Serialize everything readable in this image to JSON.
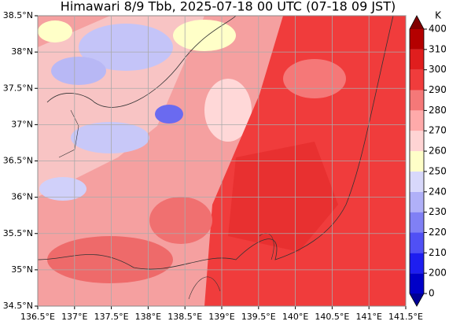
{
  "title": "Himawari 8/9 Tbb, 2025-07-18 00 UTC (07-18 09 JST)",
  "map": {
    "xlim": [
      136.5,
      141.5
    ],
    "ylim": [
      34.5,
      38.5
    ],
    "grid": true,
    "xticks": [
      {
        "value": 136.5,
        "label": "136.5°E"
      },
      {
        "value": 137,
        "label": "137°E"
      },
      {
        "value": 137.5,
        "label": "137.5°E"
      },
      {
        "value": 138,
        "label": "138°E"
      },
      {
        "value": 138.5,
        "label": "138.5°E"
      },
      {
        "value": 139,
        "label": "139°E"
      },
      {
        "value": 139.5,
        "label": "139.5°E"
      },
      {
        "value": 140,
        "label": "140°E"
      },
      {
        "value": 140.5,
        "label": "140.5°E"
      },
      {
        "value": 141,
        "label": "141°E"
      },
      {
        "value": 141.5,
        "label": "141.5°E"
      }
    ],
    "yticks": [
      {
        "value": 34.5,
        "label": "34.5°N"
      },
      {
        "value": 35,
        "label": "35°N"
      },
      {
        "value": 35.5,
        "label": "35.5°N"
      },
      {
        "value": 36,
        "label": "36°N"
      },
      {
        "value": 36.5,
        "label": "36.5°N"
      },
      {
        "value": 37,
        "label": "37°N"
      },
      {
        "value": 37.5,
        "label": "37.5°N"
      },
      {
        "value": 38,
        "label": "38°N"
      },
      {
        "value": 38.5,
        "label": "38.5°N"
      }
    ]
  },
  "colorbar": {
    "unit": "K",
    "levels": [
      0,
      200,
      210,
      220,
      230,
      240,
      250,
      260,
      270,
      280,
      290,
      300,
      310,
      400
    ],
    "colors": [
      "#0000c8",
      "#1e1ef0",
      "#5050f5",
      "#8080f5",
      "#b0b0f8",
      "#d8d8fb",
      "#ffffc8",
      "#ffd4d4",
      "#ffaaaa",
      "#f57878",
      "#f03c3c",
      "#e01e1e",
      "#b40000"
    ],
    "under_color": "#000096",
    "over_color": "#800000"
  }
}
